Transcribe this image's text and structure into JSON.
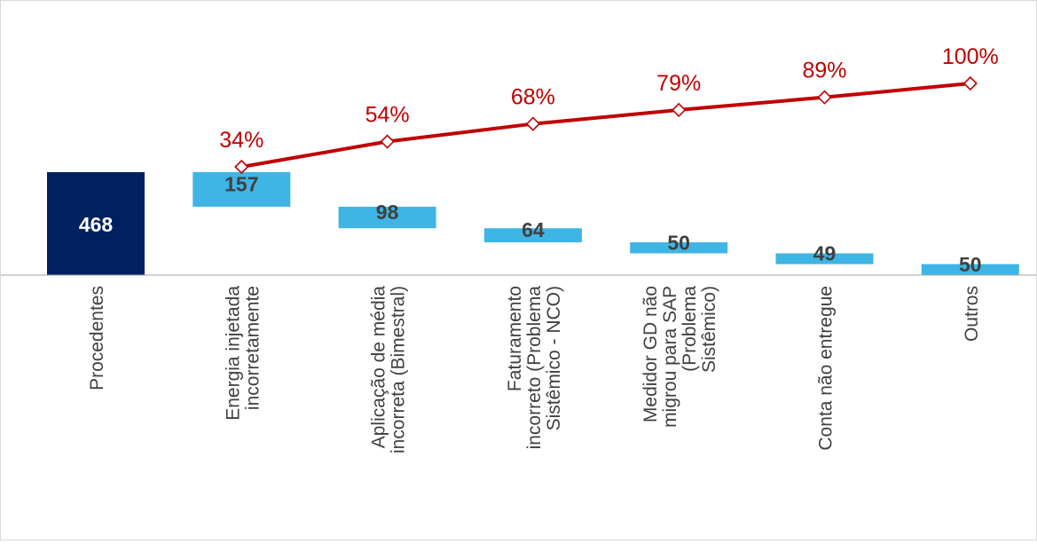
{
  "chart_data": {
    "type": "bar",
    "subtype": "waterfall-pareto",
    "title": "",
    "xlabel": "",
    "ylabel": "",
    "total": {
      "category": "Procedentes",
      "value": 468,
      "label": "468",
      "color": "#002060"
    },
    "categories": [
      "Energia injetada incorretamente",
      "Aplicação de média incorreta (Bimestral)",
      "Faturamento incorreto (Problema Sistêmico - NCO)",
      "Medidor GD não migrou para SAP (Problema Sistêmico)",
      "Conta não entregue",
      "Outros"
    ],
    "category_label_lines": [
      [
        "Procedentes"
      ],
      [
        "Energia injetada",
        "incorretamente"
      ],
      [
        "Aplicação de média",
        "incorreta (Bimestral)"
      ],
      [
        "Faturamento",
        "incorreto (Problema",
        "Sistêmico - NCO)"
      ],
      [
        "Medidor GD não",
        "migrou para SAP",
        "(Problema",
        "Sistêmico)"
      ],
      [
        "Conta não entregue"
      ],
      [
        "Outros"
      ]
    ],
    "values": [
      157,
      98,
      64,
      50,
      49,
      50
    ],
    "value_labels": [
      "157",
      "98",
      "64",
      "50",
      "49",
      "50"
    ],
    "bar_color": "#3EB5E5",
    "cumulative_percent": {
      "name": "",
      "values": [
        34,
        54,
        68,
        79,
        89,
        100
      ],
      "labels": [
        "34%",
        "54%",
        "68%",
        "79%",
        "89%",
        "100%"
      ],
      "color": "#C00000"
    },
    "grid": false,
    "legend": "none"
  }
}
